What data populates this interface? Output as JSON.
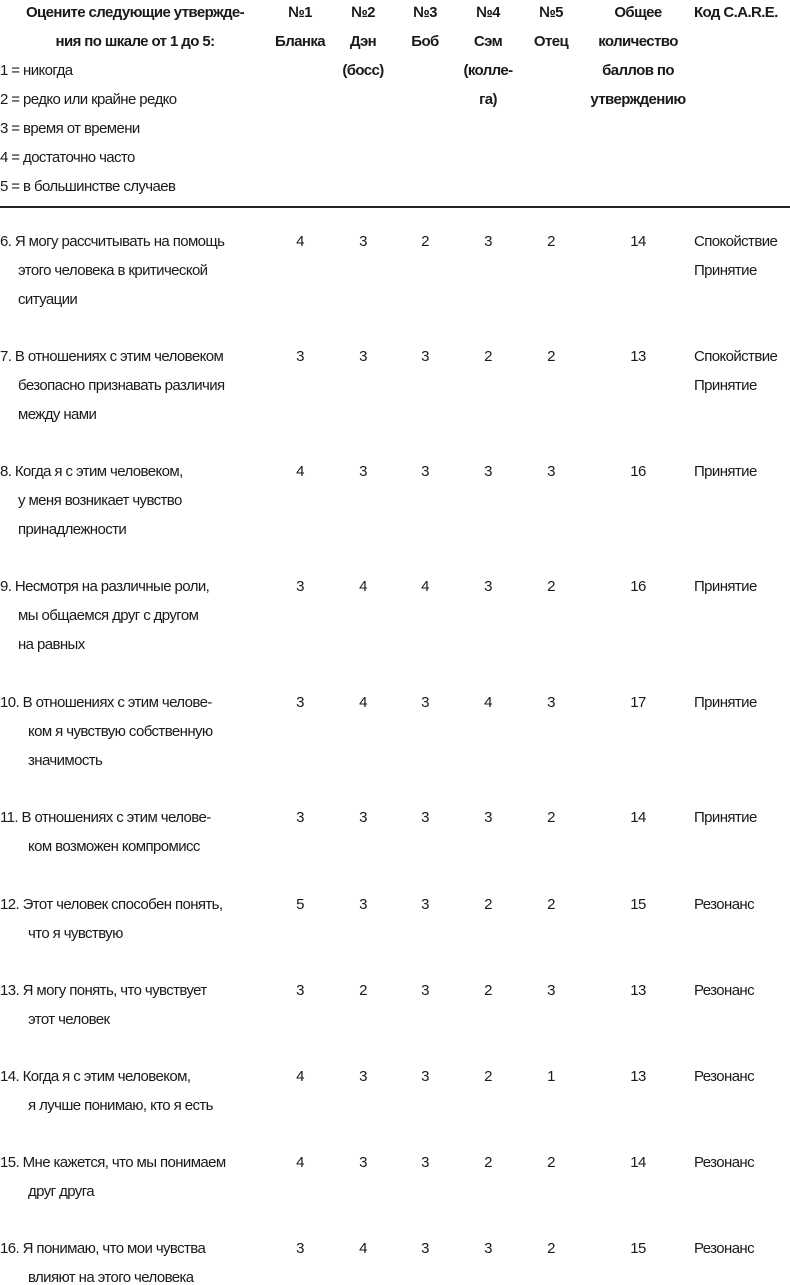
{
  "header": {
    "instruction": [
      "Оцените следующие утвержде-",
      "ния по шкале от 1 до 5:"
    ],
    "scale": [
      "1 = никогда",
      "2 = редко или крайне редко",
      "3 = время от времени",
      "4 = достаточно часто",
      "5 = в большинстве случаев"
    ],
    "columns": [
      [
        "№1",
        "Бланка"
      ],
      [
        "№2",
        "Дэн",
        "(босс)"
      ],
      [
        "№3",
        "Боб"
      ],
      [
        "№4",
        "Сэм",
        "(колле-",
        "га)"
      ],
      [
        "№5",
        "Отец"
      ],
      [
        "Общее",
        "количество",
        "баллов по",
        "утверждению"
      ],
      [
        "Код C.A.R.E."
      ]
    ]
  },
  "rows": [
    {
      "statement": [
        "6. Я могу рассчитывать на помощь",
        "этого человека в критической",
        "ситуации"
      ],
      "scores": [
        "4",
        "3",
        "2",
        "3",
        "2"
      ],
      "total": "14",
      "code": [
        "Спокойствие",
        "Принятие"
      ]
    },
    {
      "statement": [
        "7. В отношениях с этим человеком",
        "безопасно признавать различия",
        "между нами"
      ],
      "scores": [
        "3",
        "3",
        "3",
        "2",
        "2"
      ],
      "total": "13",
      "code": [
        "Спокойствие",
        "Принятие"
      ]
    },
    {
      "statement": [
        "8. Когда я с этим человеком,",
        "у меня возникает чувство",
        "принадлежности"
      ],
      "scores": [
        "4",
        "3",
        "3",
        "3",
        "3"
      ],
      "total": "16",
      "code": [
        "Принятие"
      ]
    },
    {
      "statement": [
        "9. Несмотря на различные роли,",
        "мы общаемся друг с другом",
        "на равных"
      ],
      "scores": [
        "3",
        "4",
        "4",
        "3",
        "2"
      ],
      "total": "16",
      "code": [
        "Принятие"
      ]
    },
    {
      "statement": [
        "10. В отношениях с этим челове-",
        "ком я чувствую собственную",
        "значимость"
      ],
      "scores": [
        "3",
        "4",
        "3",
        "4",
        "3"
      ],
      "total": "17",
      "code": [
        "Принятие"
      ]
    },
    {
      "statement": [
        "11. В отношениях с этим челове-",
        "ком возможен компромисс"
      ],
      "scores": [
        "3",
        "3",
        "3",
        "3",
        "2"
      ],
      "total": "14",
      "code": [
        "Принятие"
      ]
    },
    {
      "statement": [
        "12. Этот человек способен понять,",
        "что я чувствую"
      ],
      "scores": [
        "5",
        "3",
        "3",
        "2",
        "2"
      ],
      "total": "15",
      "code": [
        "Резонанс"
      ]
    },
    {
      "statement": [
        "13. Я могу понять, что чувствует",
        "этот человек"
      ],
      "scores": [
        "3",
        "2",
        "3",
        "2",
        "3"
      ],
      "total": "13",
      "code": [
        "Резонанс"
      ]
    },
    {
      "statement": [
        "14. Когда я с этим человеком,",
        "я лучше понимаю, кто я есть"
      ],
      "scores": [
        "4",
        "3",
        "3",
        "2",
        "1"
      ],
      "total": "13",
      "code": [
        "Резонанс"
      ]
    },
    {
      "statement": [
        "15. Мне кажется, что мы понимаем",
        "друг друга"
      ],
      "scores": [
        "4",
        "3",
        "3",
        "2",
        "2"
      ],
      "total": "14",
      "code": [
        "Резонанс"
      ]
    },
    {
      "statement": [
        "16. Я понимаю, что мои чувства",
        "влияют на этого человека"
      ],
      "scores": [
        "3",
        "4",
        "3",
        "3",
        "2"
      ],
      "total": "15",
      "code": [
        "Резонанс"
      ]
    }
  ]
}
